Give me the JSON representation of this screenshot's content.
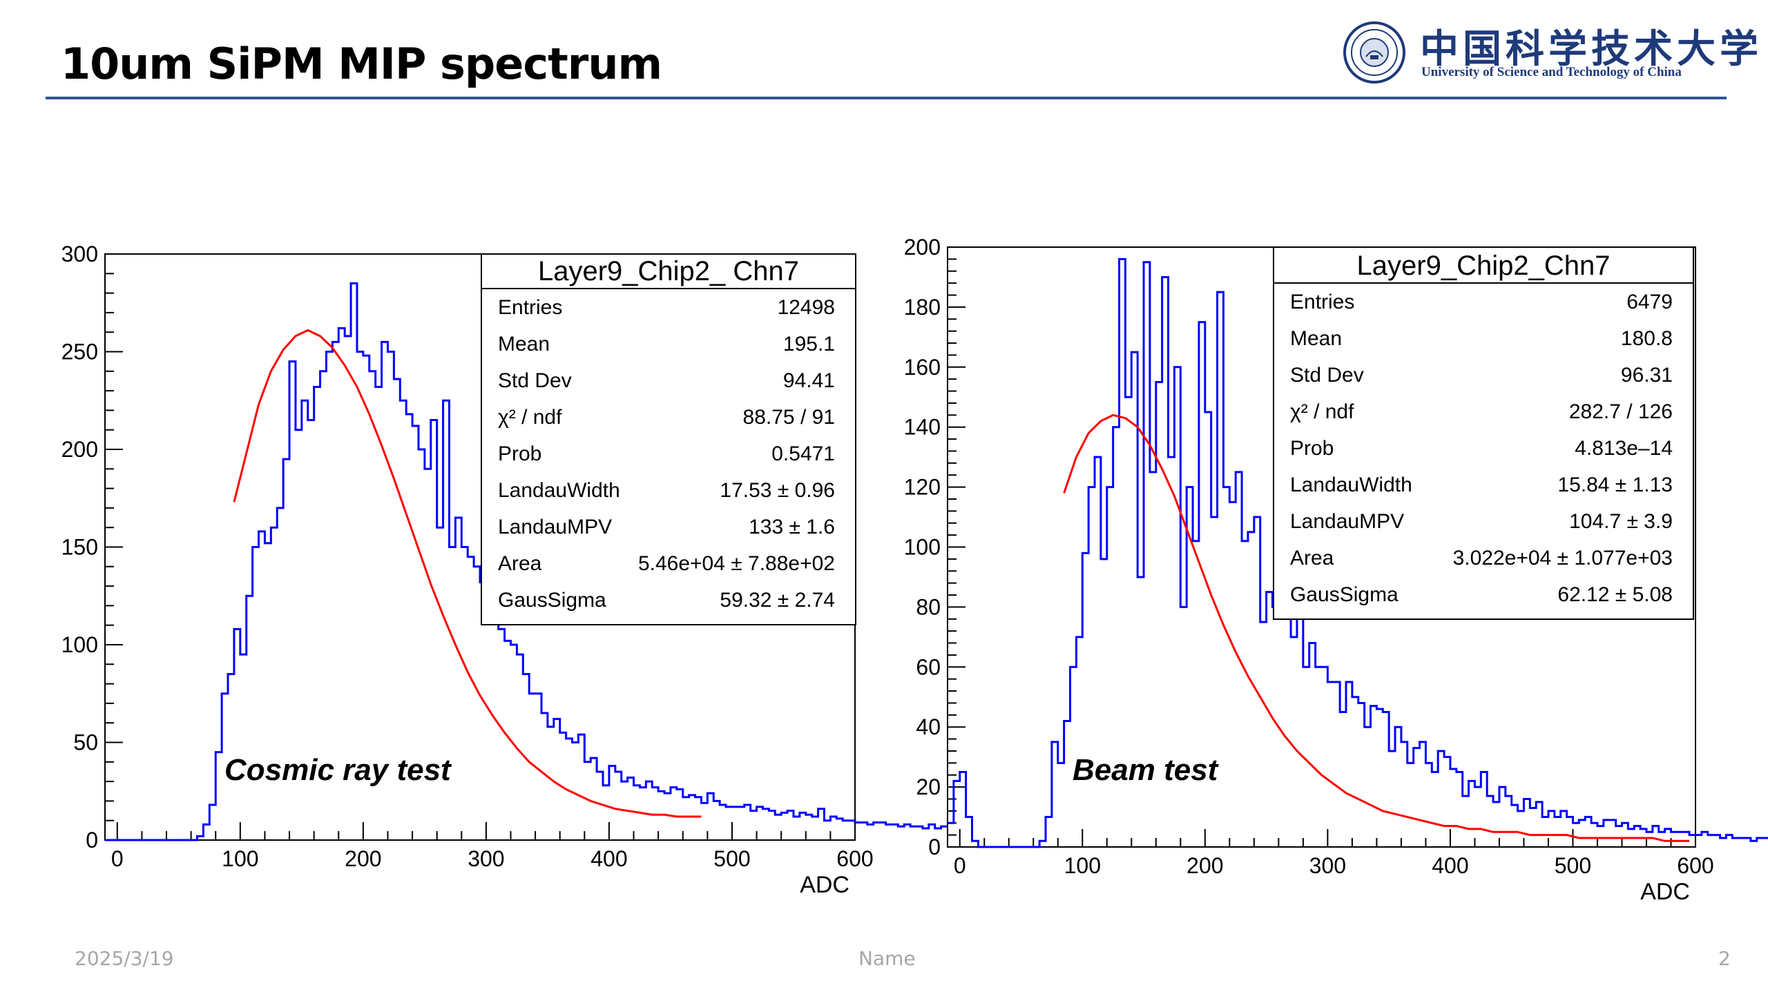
{
  "slide": {
    "title": "10um SiPM MIP spectrum",
    "logo_cn": "中国科学技术大学",
    "logo_en": "University of Science and Technology of China",
    "footer_date": "2025/3/19",
    "footer_name": "Name",
    "page_number": "2"
  },
  "colors": {
    "histogram": "#0000ff",
    "fit": "#ff0000",
    "rule": "#2f5597",
    "logo": "#1f3a7a"
  },
  "chart_data": [
    {
      "type": "histogram",
      "stats_title": "Layer9_Chip2_ Chn7",
      "stats": [
        {
          "label": "Entries",
          "value": "12498"
        },
        {
          "label": "Mean",
          "value": "195.1"
        },
        {
          "label": "Std Dev",
          "value": "94.41"
        },
        {
          "label": "χ² / ndf",
          "value": "88.75 / 91"
        },
        {
          "label": "Prob",
          "value": "0.5471"
        },
        {
          "label": "LandauWidth",
          "value": "17.53 ± 0.96"
        },
        {
          "label": "LandauMPV",
          "value": "133 ± 1.6"
        },
        {
          "label": "Area",
          "value": "5.46e+04 ± 7.88e+02"
        },
        {
          "label": "GausSigma",
          "value": "59.32 ± 2.74"
        }
      ],
      "annotation": "Cosmic ray test",
      "xlabel": "ADC",
      "xlim": [
        -10,
        600
      ],
      "ylim": [
        0,
        300
      ],
      "xticks": [
        0,
        100,
        200,
        300,
        400,
        500,
        600
      ],
      "yticks": [
        0,
        50,
        100,
        150,
        200,
        250,
        300
      ],
      "bin_width": 5,
      "bins_x_start": -10,
      "values": [
        0,
        0,
        0,
        0,
        0,
        0,
        0,
        0,
        0,
        0,
        0,
        0,
        0,
        0,
        0,
        2,
        8,
        18,
        45,
        75,
        85,
        108,
        95,
        125,
        150,
        158,
        152,
        160,
        170,
        195,
        245,
        210,
        225,
        215,
        232,
        240,
        250,
        255,
        262,
        258,
        285,
        250,
        248,
        240,
        232,
        255,
        250,
        236,
        225,
        218,
        212,
        200,
        190,
        215,
        160,
        225,
        150,
        165,
        150,
        145,
        140,
        132,
        130,
        118,
        108,
        102,
        100,
        95,
        85,
        75,
        75,
        65,
        58,
        62,
        55,
        52,
        50,
        54,
        40,
        42,
        35,
        28,
        38,
        35,
        30,
        32,
        28,
        27,
        30,
        27,
        25,
        24,
        27,
        26,
        22,
        23,
        22,
        19,
        24,
        20,
        18,
        17,
        17,
        17,
        18,
        15,
        17,
        16,
        15,
        13,
        14,
        15,
        12,
        14,
        13,
        12,
        16,
        10,
        12,
        11,
        10,
        10,
        9,
        9,
        8,
        9,
        9,
        8,
        8,
        7,
        8,
        7,
        7,
        6,
        8,
        6,
        7
      ],
      "fit_x": [
        95,
        105,
        115,
        125,
        135,
        145,
        155,
        165,
        175,
        185,
        195,
        205,
        215,
        225,
        235,
        245,
        255,
        265,
        275,
        285,
        295,
        305,
        315,
        325,
        335,
        345,
        355,
        365,
        375,
        385,
        395,
        405,
        415,
        425,
        435,
        445,
        455,
        465,
        475
      ],
      "fit_y": [
        173,
        198,
        223,
        240,
        251,
        258,
        261,
        258,
        252,
        243,
        232,
        218,
        202,
        185,
        167,
        149,
        131,
        115,
        100,
        86,
        74,
        64,
        55,
        47,
        40,
        35,
        30,
        26,
        23,
        20,
        18,
        16,
        15,
        14,
        13,
        13,
        12,
        12,
        12
      ]
    },
    {
      "type": "histogram",
      "stats_title": "Layer9_Chip2_Chn7",
      "stats": [
        {
          "label": "Entries",
          "value": "6479"
        },
        {
          "label": "Mean",
          "value": "180.8"
        },
        {
          "label": "Std Dev",
          "value": "96.31"
        },
        {
          "label": "χ² / ndf",
          "value": "282.7 / 126"
        },
        {
          "label": "Prob",
          "value": "4.813e–14"
        },
        {
          "label": "LandauWidth",
          "value": "15.84 ± 1.13"
        },
        {
          "label": "LandauMPV",
          "value": "104.7 ± 3.9"
        },
        {
          "label": "Area",
          "value": "3.022e+04 ± 1.077e+03"
        },
        {
          "label": "GausSigma",
          "value": "62.12 ± 5.08"
        }
      ],
      "annotation": "Beam test",
      "xlabel": "ADC",
      "xlim": [
        -10,
        600
      ],
      "ylim": [
        0,
        200
      ],
      "xticks": [
        0,
        100,
        200,
        300,
        400,
        500,
        600
      ],
      "yticks": [
        0,
        20,
        40,
        60,
        80,
        100,
        120,
        140,
        160,
        180,
        200
      ],
      "bin_width": 5,
      "bins_x_start": -10,
      "values": [
        8,
        22,
        25,
        10,
        2,
        0,
        0,
        0,
        0,
        0,
        0,
        0,
        0,
        0,
        0,
        2,
        10,
        35,
        28,
        42,
        60,
        70,
        98,
        120,
        130,
        96,
        120,
        140,
        196,
        150,
        165,
        90,
        195,
        125,
        155,
        190,
        130,
        160,
        80,
        120,
        102,
        175,
        145,
        110,
        185,
        120,
        115,
        125,
        102,
        105,
        110,
        75,
        85,
        80,
        90,
        85,
        70,
        80,
        60,
        68,
        60,
        60,
        55,
        55,
        45,
        55,
        50,
        48,
        40,
        47,
        46,
        45,
        32,
        40,
        35,
        28,
        33,
        35,
        28,
        25,
        32,
        30,
        26,
        25,
        17,
        22,
        20,
        25,
        17,
        15,
        20,
        17,
        14,
        12,
        16,
        13,
        15,
        10,
        12,
        10,
        12,
        10,
        8,
        9,
        10,
        8,
        7,
        9,
        9,
        7,
        8,
        6,
        7,
        6,
        5,
        7,
        5,
        6,
        5,
        5,
        5,
        4,
        4,
        5,
        4,
        4,
        3,
        4,
        3,
        3,
        3,
        2,
        3,
        3,
        2,
        2,
        3
      ],
      "fit_x": [
        85,
        95,
        105,
        115,
        125,
        135,
        145,
        155,
        165,
        175,
        185,
        195,
        205,
        215,
        225,
        235,
        245,
        255,
        265,
        275,
        285,
        295,
        305,
        315,
        325,
        335,
        345,
        355,
        365,
        375,
        385,
        395,
        405,
        415,
        425,
        435,
        445,
        455,
        465,
        475,
        485,
        495,
        505,
        515,
        525,
        535,
        545,
        555,
        565,
        575,
        585,
        595
      ],
      "fit_y": [
        118,
        130,
        138,
        142,
        144,
        143,
        140,
        134,
        126,
        117,
        106,
        95,
        84,
        74,
        65,
        57,
        50,
        43,
        37,
        32,
        28,
        24,
        21,
        18,
        16,
        14,
        12,
        11,
        10,
        9,
        8,
        7,
        7,
        6,
        6,
        5,
        5,
        5,
        4,
        4,
        4,
        4,
        3,
        3,
        3,
        3,
        3,
        3,
        3,
        2,
        2,
        2
      ]
    }
  ]
}
